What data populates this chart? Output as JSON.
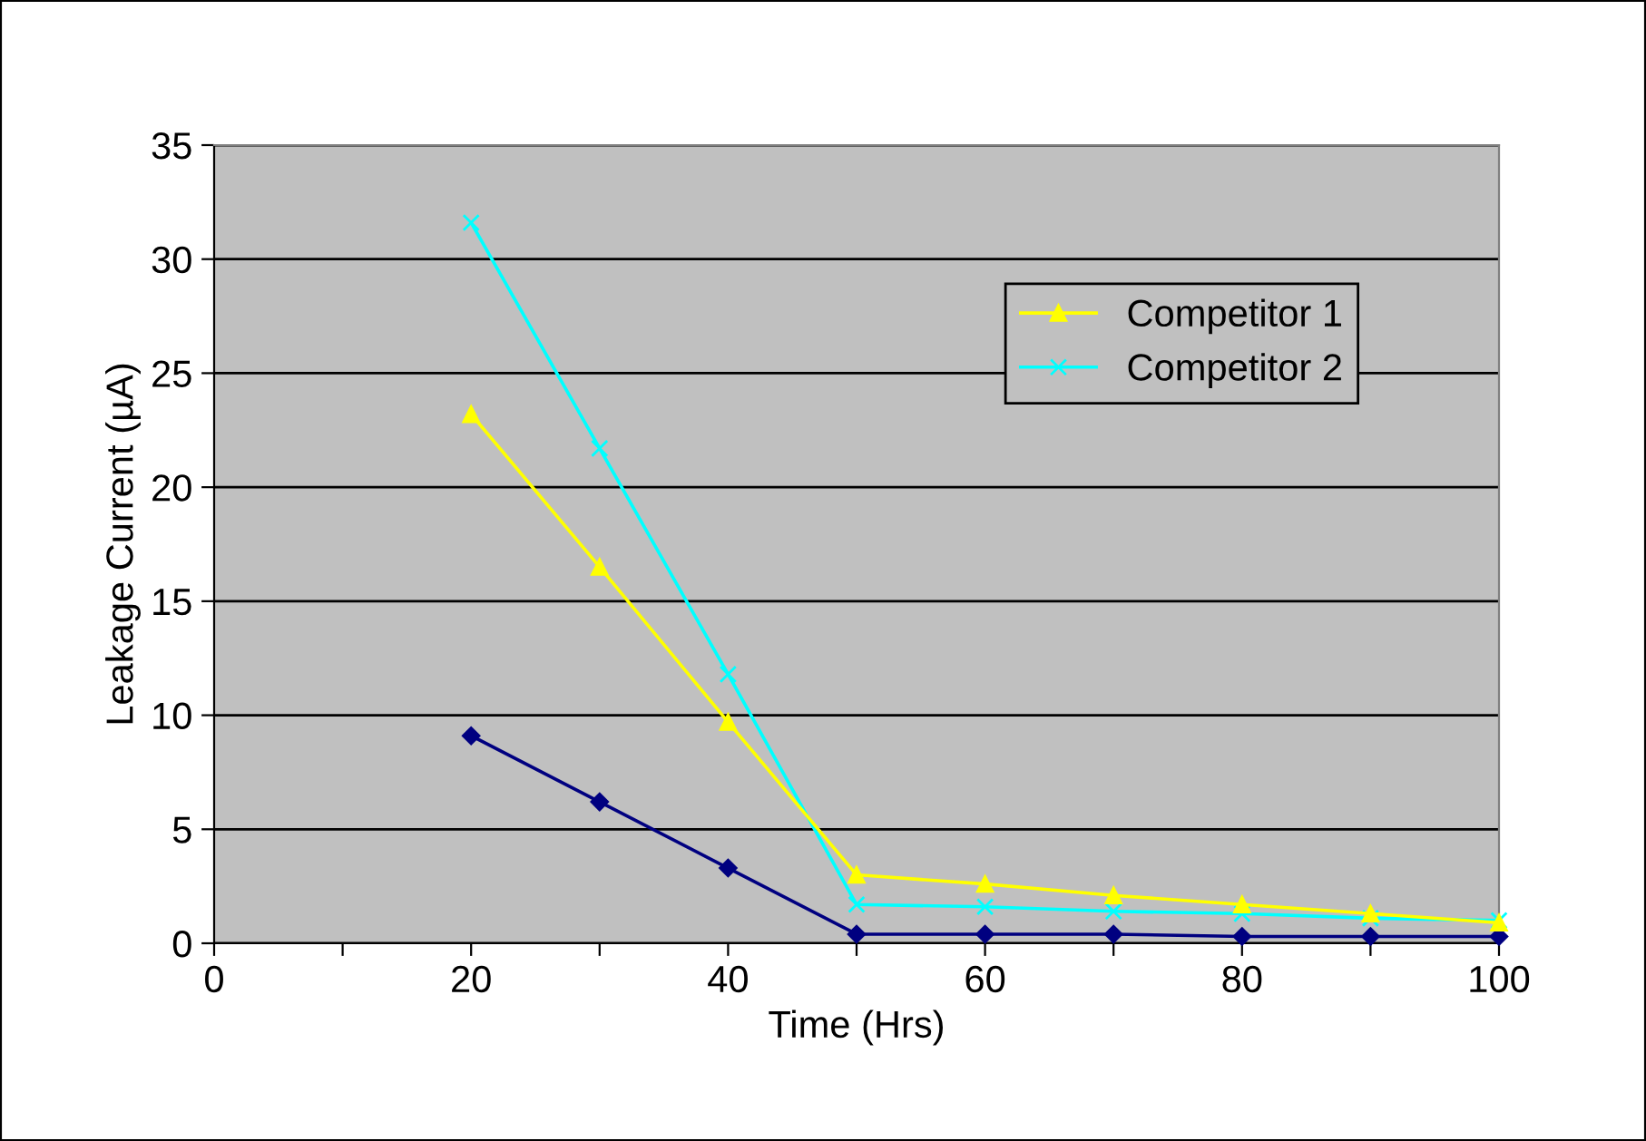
{
  "chart_data": {
    "type": "line",
    "xlabel": "Time (Hrs)",
    "ylabel": "Leakage Current (µA)",
    "x": [
      20,
      30,
      40,
      50,
      60,
      70,
      80,
      90,
      100
    ],
    "series": [
      {
        "name": "Competitor 1",
        "color": "#ffff00",
        "marker": "triangle",
        "values": [
          23.2,
          16.5,
          9.7,
          3.0,
          2.6,
          2.1,
          1.7,
          1.3,
          0.9
        ]
      },
      {
        "name": "Competitor 2",
        "color": "#00ffff",
        "marker": "cross",
        "values": [
          31.6,
          21.7,
          11.8,
          1.7,
          1.6,
          1.4,
          1.3,
          1.1,
          1.0
        ]
      },
      {
        "color": "#000080",
        "marker": "diamond",
        "values": [
          9.1,
          6.2,
          3.3,
          0.4,
          0.4,
          0.4,
          0.3,
          0.3,
          0.3
        ]
      }
    ],
    "xlim": [
      0,
      100
    ],
    "xticks": [
      0,
      {
        "value": 10,
        "label": null
      },
      20,
      {
        "value": 30,
        "label": null
      },
      40,
      {
        "value": 50,
        "label": null
      },
      60,
      {
        "value": 70,
        "label": null
      },
      80,
      {
        "value": 90,
        "label": null
      },
      100
    ],
    "ylim": [
      0,
      35
    ],
    "yticks": [
      0,
      5,
      10,
      15,
      20,
      25,
      30,
      35
    ],
    "grid": "y",
    "legend": "top right"
  }
}
